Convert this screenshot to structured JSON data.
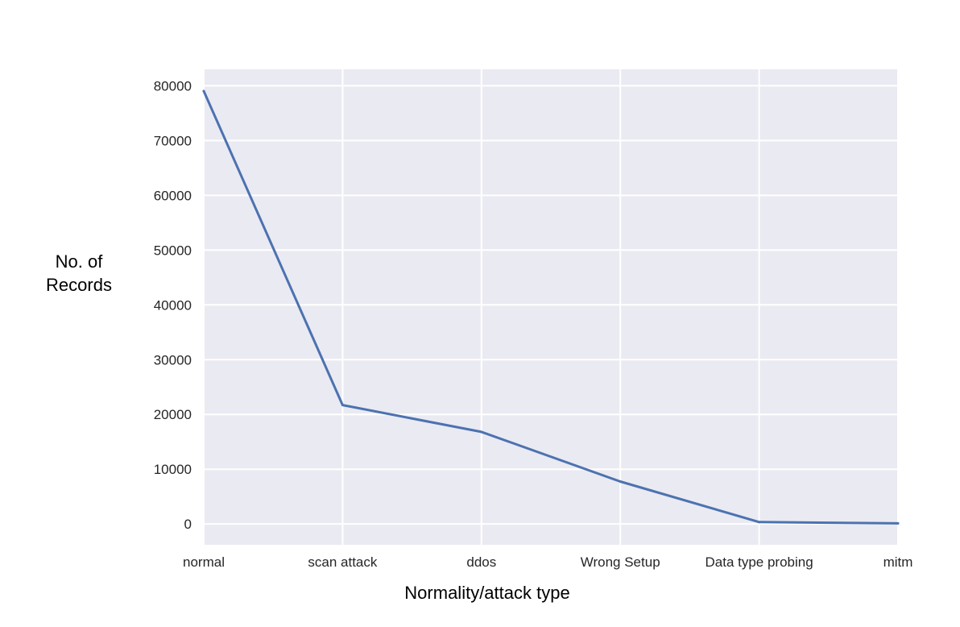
{
  "chart_data": {
    "type": "line",
    "title": "",
    "xlabel": "Normality/attack type",
    "ylabel_lines": [
      "No. of",
      "Records"
    ],
    "categories": [
      "normal",
      "scan attack",
      "ddos",
      "Wrong Setup",
      "Data type probing",
      "mitm"
    ],
    "series": [
      {
        "values": [
          79035,
          21715,
          16805,
          7750,
          342,
          112
        ]
      }
    ],
    "yticks": [
      0,
      10000,
      20000,
      30000,
      40000,
      50000,
      60000,
      70000,
      80000
    ],
    "ylim": [
      -3800,
      83000
    ],
    "grid": true,
    "legend": "none",
    "colors": {
      "background": "#eaeaf2",
      "grid": "#ffffff",
      "line": "#4c72b0"
    }
  }
}
